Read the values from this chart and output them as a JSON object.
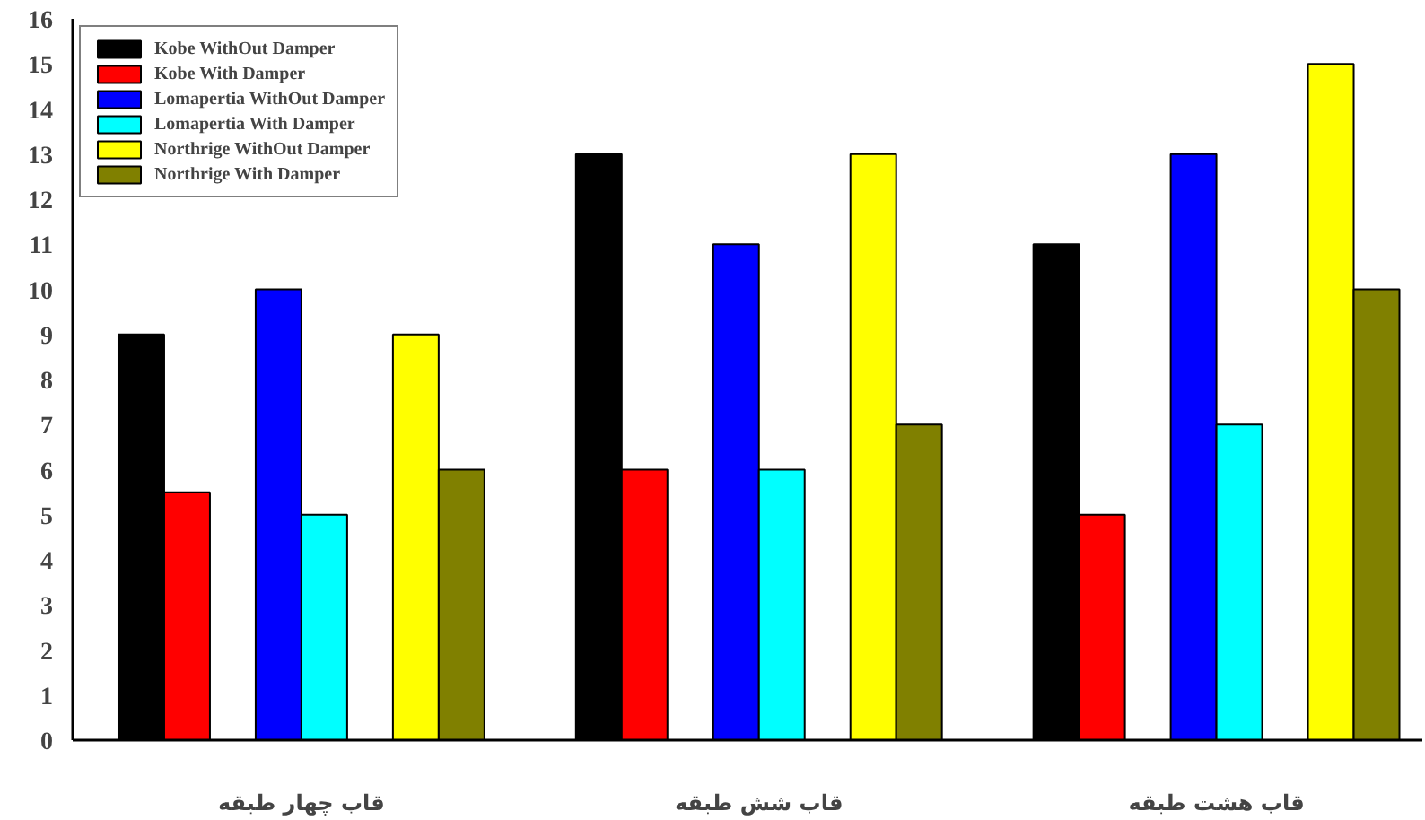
{
  "chart_data": {
    "type": "bar",
    "categories": [
      "قاب چهار طبقه",
      "قاب شش طبقه",
      "قاب هشت طبقه"
    ],
    "series": [
      {
        "name": "Kobe WithOut Damper",
        "color": "#000000",
        "values": [
          9,
          13,
          11
        ]
      },
      {
        "name": "Kobe With Damper",
        "color": "#ff0000",
        "values": [
          5.5,
          6,
          5
        ]
      },
      {
        "name": "Lomapertia WithOut Damper",
        "color": "#0000ff",
        "values": [
          10,
          11,
          13
        ]
      },
      {
        "name": "Lomapertia With Damper",
        "color": "#00ffff",
        "values": [
          5,
          6,
          7
        ]
      },
      {
        "name": "Northrige WithOut Damper",
        "color": "#ffff00",
        "values": [
          9,
          13,
          15
        ]
      },
      {
        "name": "Northrige With Damper",
        "color": "#808000",
        "values": [
          6,
          7,
          10
        ]
      }
    ],
    "ylim": [
      0,
      16
    ],
    "yticks": [
      0,
      1,
      2,
      3,
      4,
      5,
      6,
      7,
      8,
      9,
      10,
      11,
      12,
      13,
      14,
      15,
      16
    ],
    "grid": false,
    "legend": "top left"
  }
}
